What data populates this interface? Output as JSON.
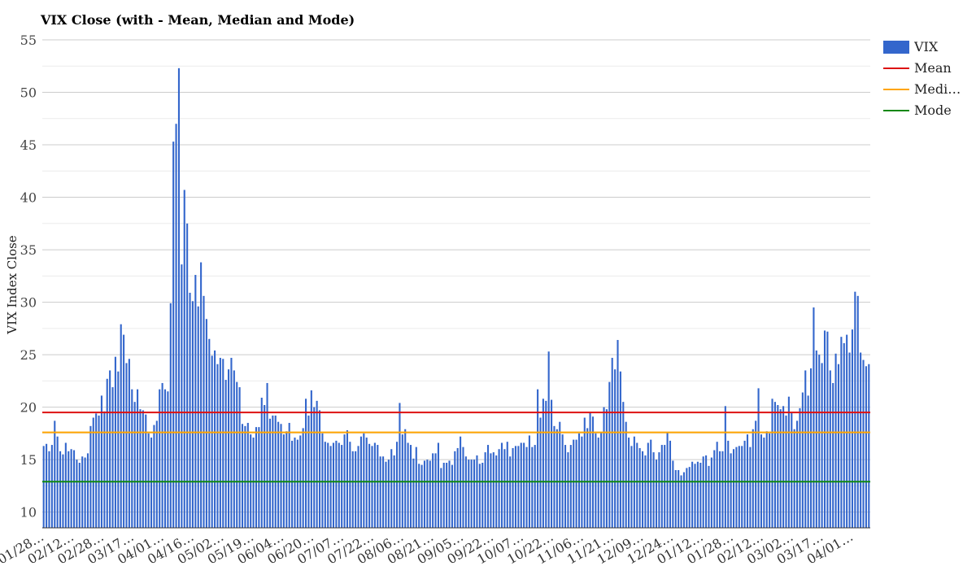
{
  "chart_data": {
    "type": "bar",
    "title": "VIX Close (with - Mean, Median and Mode)",
    "ylabel": "VIX Index Close",
    "xlabel": "",
    "ylim": [
      8.5,
      55
    ],
    "yticks": [
      10,
      15,
      20,
      25,
      30,
      35,
      40,
      45,
      50,
      55
    ],
    "grid": true,
    "legend_position": "right",
    "xtick_labels": [
      "01/28…",
      "02/12…",
      "02/28…",
      "03/17…",
      "04/01…",
      "04/16…",
      "05/02…",
      "05/19…",
      "06/04…",
      "06/20…",
      "07/07…",
      "07/22…",
      "08/06…",
      "08/21…",
      "09/05…",
      "09/22…",
      "10/07…",
      "10/22…",
      "11/06…",
      "11/21…",
      "12/09…",
      "12/24…",
      "01/12…",
      "01/28…",
      "02/12…",
      "03/02…",
      "03/17…",
      "04/01…"
    ],
    "series": [
      {
        "name": "VIX",
        "kind": "bar",
        "color": "#3366cc",
        "values": [
          16.3,
          16.5,
          15.8,
          16.4,
          18.7,
          17.2,
          15.8,
          15.5,
          16.6,
          15.8,
          16.0,
          15.9,
          15.0,
          14.7,
          15.3,
          15.2,
          15.6,
          18.2,
          19.0,
          19.4,
          19.2,
          21.1,
          19.6,
          22.7,
          23.5,
          21.9,
          24.8,
          23.4,
          27.9,
          26.9,
          24.2,
          24.6,
          21.7,
          20.5,
          21.7,
          19.8,
          19.7,
          19.3,
          17.5,
          17.1,
          18.3,
          18.7,
          21.7,
          22.3,
          21.7,
          21.5,
          29.9,
          45.3,
          47.0,
          52.3,
          33.6,
          40.7,
          37.5,
          30.9,
          30.1,
          32.6,
          29.6,
          33.8,
          30.6,
          28.4,
          26.5,
          24.9,
          25.4,
          24.1,
          24.7,
          24.6,
          22.6,
          23.6,
          24.7,
          23.5,
          22.4,
          21.9,
          18.4,
          18.2,
          18.5,
          17.4,
          17.1,
          18.1,
          18.1,
          20.9,
          20.2,
          22.3,
          18.9,
          19.2,
          19.2,
          18.6,
          18.4,
          17.4,
          17.7,
          18.5,
          16.8,
          17.1,
          16.9,
          17.3,
          18.0,
          20.8,
          19.2,
          21.6,
          20.0,
          20.6,
          19.7,
          17.5,
          16.7,
          16.6,
          16.3,
          16.6,
          16.8,
          16.6,
          16.4,
          17.4,
          17.8,
          16.7,
          15.8,
          15.8,
          16.3,
          17.2,
          17.5,
          17.1,
          16.5,
          16.3,
          16.6,
          16.4,
          15.3,
          15.3,
          14.8,
          15.0,
          16.0,
          15.4,
          16.7,
          20.4,
          17.4,
          17.9,
          16.6,
          16.4,
          15.1,
          16.2,
          14.6,
          14.5,
          14.9,
          15.0,
          14.9,
          15.6,
          15.6,
          16.6,
          14.2,
          14.7,
          14.7,
          14.9,
          14.5,
          15.8,
          16.1,
          17.2,
          16.2,
          15.3,
          15.0,
          15.0,
          15.0,
          15.4,
          14.6,
          14.7,
          15.7,
          16.4,
          15.6,
          15.7,
          15.4,
          16.0,
          16.6,
          16.0,
          16.7,
          15.3,
          16.1,
          16.3,
          16.3,
          16.6,
          16.6,
          16.2,
          17.3,
          16.2,
          16.4,
          21.7,
          19.0,
          20.8,
          20.6,
          25.3,
          20.7,
          18.2,
          17.9,
          18.6,
          17.4,
          16.4,
          15.7,
          16.4,
          16.9,
          16.9,
          17.5,
          17.2,
          19.0,
          18.0,
          19.5,
          19.1,
          17.5,
          17.1,
          17.6,
          20.0,
          19.8,
          22.4,
          24.7,
          23.6,
          26.4,
          23.4,
          20.5,
          18.6,
          17.1,
          16.3,
          17.2,
          16.6,
          16.1,
          15.8,
          15.4,
          16.6,
          16.9,
          15.7,
          15.0,
          15.7,
          16.4,
          16.4,
          17.6,
          16.8,
          14.9,
          14.0,
          14.0,
          13.5,
          13.8,
          14.2,
          14.3,
          14.8,
          14.6,
          14.8,
          14.7,
          15.3,
          15.4,
          14.4,
          15.2,
          15.9,
          16.7,
          15.8,
          15.8,
          20.1,
          16.8,
          15.6,
          16.0,
          16.2,
          16.3,
          16.3,
          16.8,
          17.4,
          16.2,
          17.9,
          18.7,
          21.8,
          17.4,
          17.1,
          17.7,
          17.5,
          20.8,
          20.5,
          20.2,
          19.8,
          20.1,
          19.2,
          21.0,
          19.5,
          17.9,
          18.7,
          19.9,
          21.4,
          23.5,
          21.1,
          23.7,
          29.5,
          25.4,
          25.0,
          24.2,
          27.3,
          27.2,
          23.5,
          22.3,
          25.1,
          24.1,
          26.7,
          26.1,
          26.9,
          25.2,
          27.4,
          31.0,
          30.6,
          25.2,
          24.5,
          23.9,
          24.1
        ]
      },
      {
        "name": "Mean",
        "kind": "line",
        "color": "#dd1111",
        "value": 19.5
      },
      {
        "name": "Median",
        "kind": "line",
        "color": "#ffa500",
        "value": 17.6
      },
      {
        "name": "Mode",
        "kind": "line",
        "color": "#118811",
        "value": 12.9
      }
    ]
  },
  "legend": [
    {
      "label": "VIX",
      "color": "#3366cc",
      "kind": "bar"
    },
    {
      "label": "Mean",
      "color": "#dd1111",
      "kind": "line"
    },
    {
      "label": "Medi…",
      "color": "#ffa500",
      "kind": "line"
    },
    {
      "label": "Mode",
      "color": "#118811",
      "kind": "line"
    }
  ]
}
